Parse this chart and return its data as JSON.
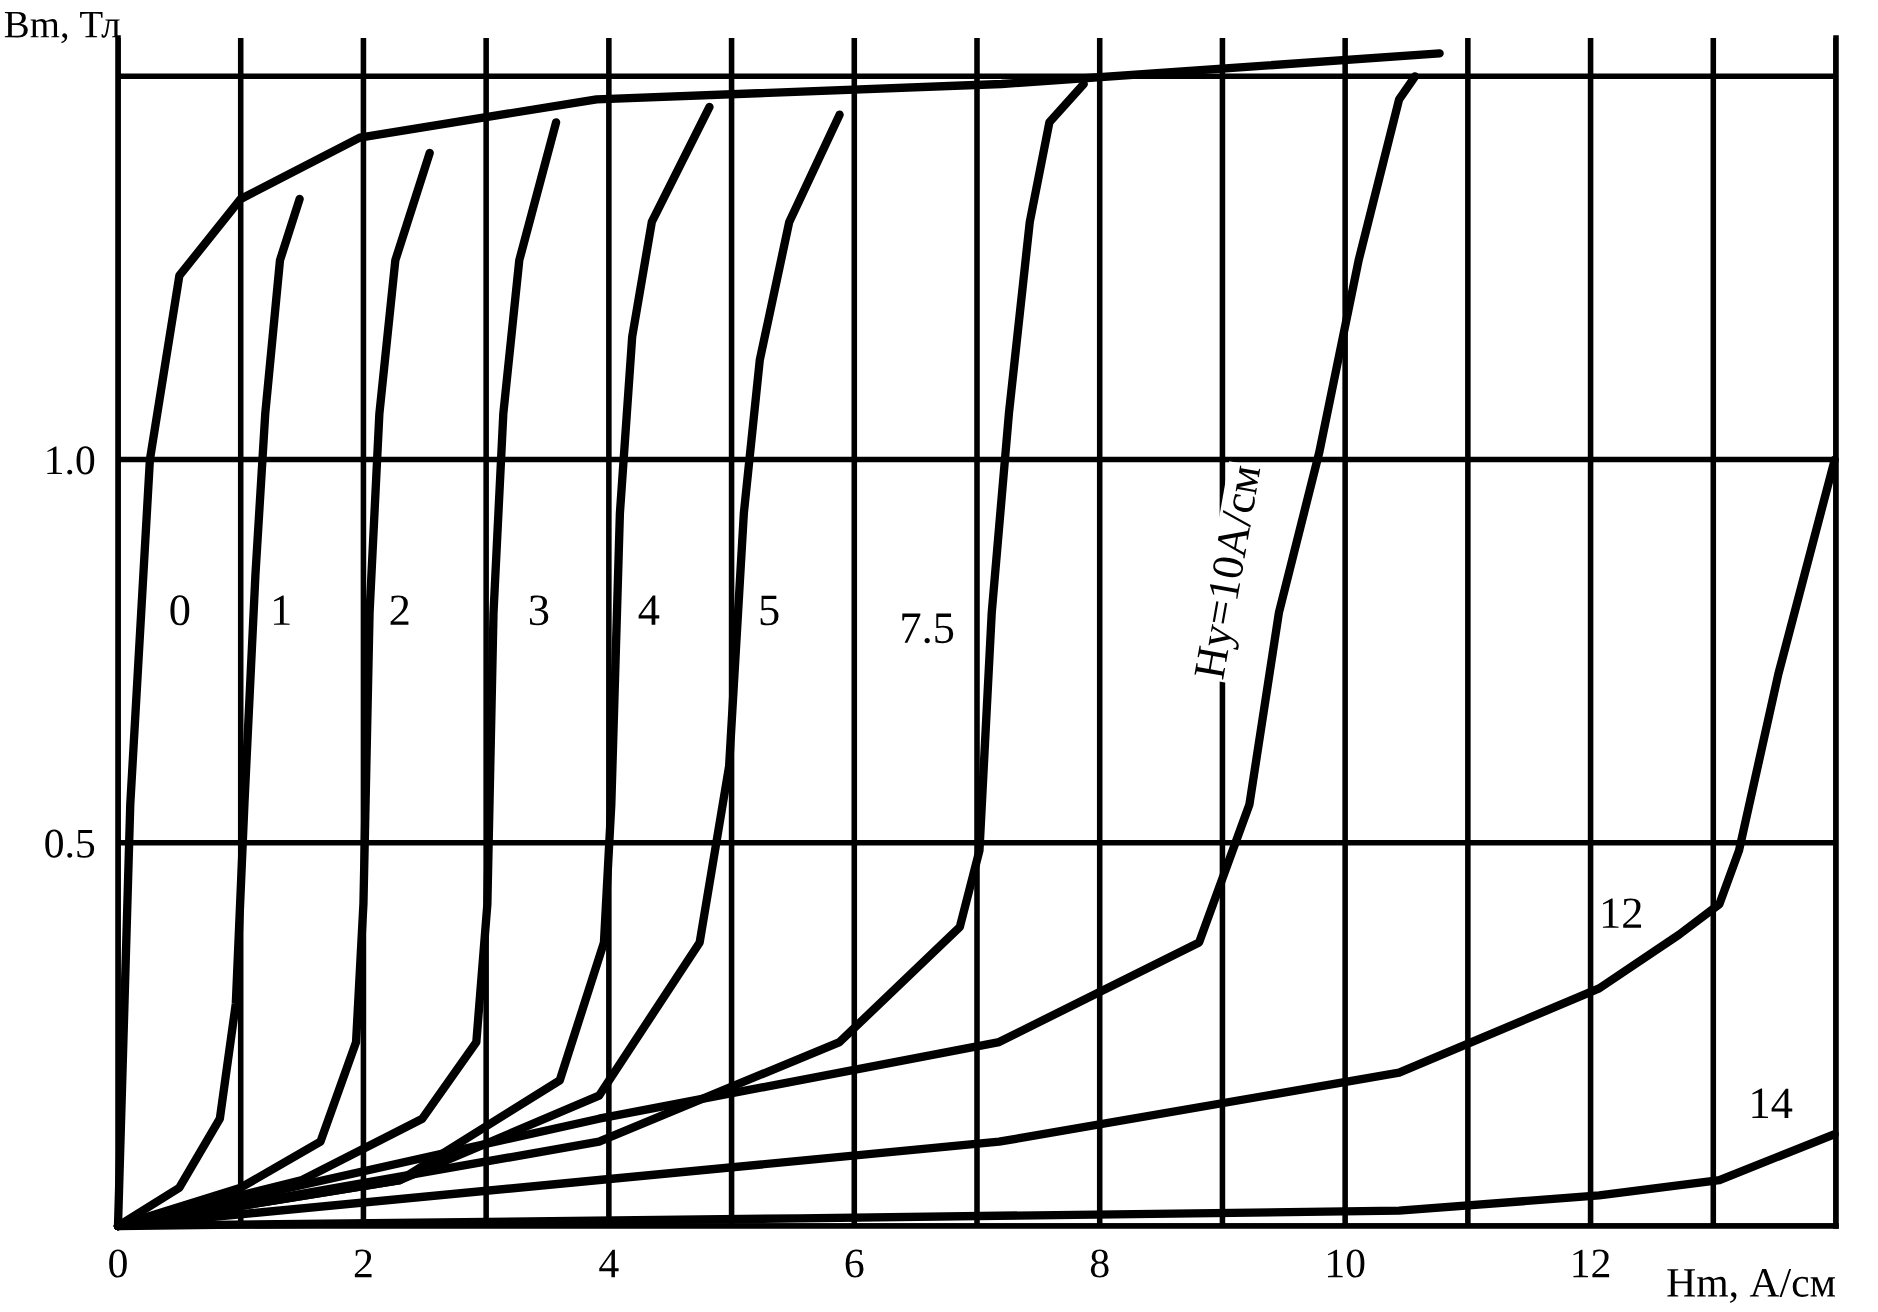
{
  "chart_data": {
    "type": "line",
    "xlabel": "Hm, А/см",
    "ylabel": "Bm, Тл",
    "xlim": [
      0,
      14
    ],
    "xticks": [
      0,
      {
        "value": 1,
        "label": null
      },
      2,
      {
        "value": 3,
        "label": null
      },
      4,
      {
        "value": 5,
        "label": null
      },
      6,
      {
        "value": 7,
        "label": null
      },
      8,
      {
        "value": 9,
        "label": null
      },
      10,
      {
        "value": 11,
        "label": null
      },
      12,
      {
        "value": 13,
        "label": null
      },
      {
        "value": 14,
        "label": null
      }
    ],
    "ylim": [
      0,
      1.55
    ],
    "yticks": [
      {
        "value": 0,
        "label": null
      },
      0.5,
      {
        "value": 1.0,
        "label": "1.0"
      },
      {
        "value": 1.5,
        "label": null
      }
    ],
    "grid": true,
    "marker": "none",
    "line_style": "solid",
    "series": [
      {
        "name": "0",
        "color": "#000000",
        "x": [
          0,
          0.1,
          0.26,
          0.5,
          1.0,
          1.97,
          3.9,
          7.2,
          10.77
        ],
        "values": [
          0,
          0.55,
          1.0,
          1.24,
          1.34,
          1.42,
          1.47,
          1.49,
          1.53
        ]
      },
      {
        "name": "1",
        "color": "#000000",
        "x": [
          0,
          0.5,
          0.83,
          0.96,
          1.03,
          1.12,
          1.2,
          1.32,
          1.48
        ],
        "values": [
          0,
          0.05,
          0.14,
          0.29,
          0.55,
          0.85,
          1.06,
          1.26,
          1.34
        ]
      },
      {
        "name": "2",
        "color": "#000000",
        "x": [
          0,
          1,
          1.65,
          1.94,
          2.0,
          2.05,
          2.13,
          2.26,
          2.54
        ],
        "values": [
          0,
          0.05,
          0.11,
          0.24,
          0.42,
          0.8,
          1.06,
          1.26,
          1.4
        ]
      },
      {
        "name": "3",
        "color": "#000000",
        "x": [
          0,
          1.5,
          2.48,
          2.92,
          3.01,
          3.06,
          3.14,
          3.27,
          3.57
        ],
        "values": [
          0,
          0.06,
          0.14,
          0.24,
          0.42,
          0.8,
          1.06,
          1.26,
          1.44
        ]
      },
      {
        "name": "4",
        "color": "#000000",
        "x": [
          0,
          2.3,
          3.6,
          3.96,
          4.02,
          4.09,
          4.19,
          4.35,
          4.82
        ],
        "values": [
          0,
          0.06,
          0.19,
          0.37,
          0.55,
          0.93,
          1.16,
          1.31,
          1.46
        ]
      },
      {
        "name": "5",
        "color": "#000000",
        "x": [
          0,
          2.3,
          3.92,
          4.74,
          4.98,
          5.1,
          5.23,
          5.47,
          5.88
        ],
        "values": [
          0,
          0.06,
          0.17,
          0.37,
          0.6,
          0.93,
          1.13,
          1.31,
          1.45
        ]
      },
      {
        "name": "7.5",
        "color": "#000000",
        "x": [
          0,
          3.92,
          5.88,
          6.86,
          7.02,
          7.12,
          7.26,
          7.43,
          7.59,
          7.87
        ],
        "values": [
          0,
          0.11,
          0.24,
          0.39,
          0.49,
          0.8,
          1.06,
          1.31,
          1.44,
          1.49
        ]
      },
      {
        "name": "Hу=10А/см",
        "color": "#000000",
        "x": [
          0,
          3.92,
          7.18,
          8.81,
          9.22,
          9.46,
          9.79,
          10.11,
          10.44,
          10.57
        ],
        "values": [
          0,
          0.14,
          0.24,
          0.37,
          0.55,
          0.8,
          1.01,
          1.26,
          1.47,
          1.5
        ]
      },
      {
        "name": "12",
        "color": "#000000",
        "x": [
          0,
          3.92,
          7.18,
          10.44,
          12.07,
          12.72,
          13.05,
          13.21,
          13.53,
          13.99
        ],
        "values": [
          0,
          0.06,
          0.11,
          0.2,
          0.31,
          0.38,
          0.42,
          0.49,
          0.72,
          1.0
        ]
      },
      {
        "name": "14",
        "color": "#000000",
        "x": [
          0,
          5.55,
          10.44,
          12.07,
          13.05,
          13.99
        ],
        "values": [
          0,
          0.01,
          0.02,
          0.04,
          0.06,
          0.12
        ]
      }
    ]
  }
}
